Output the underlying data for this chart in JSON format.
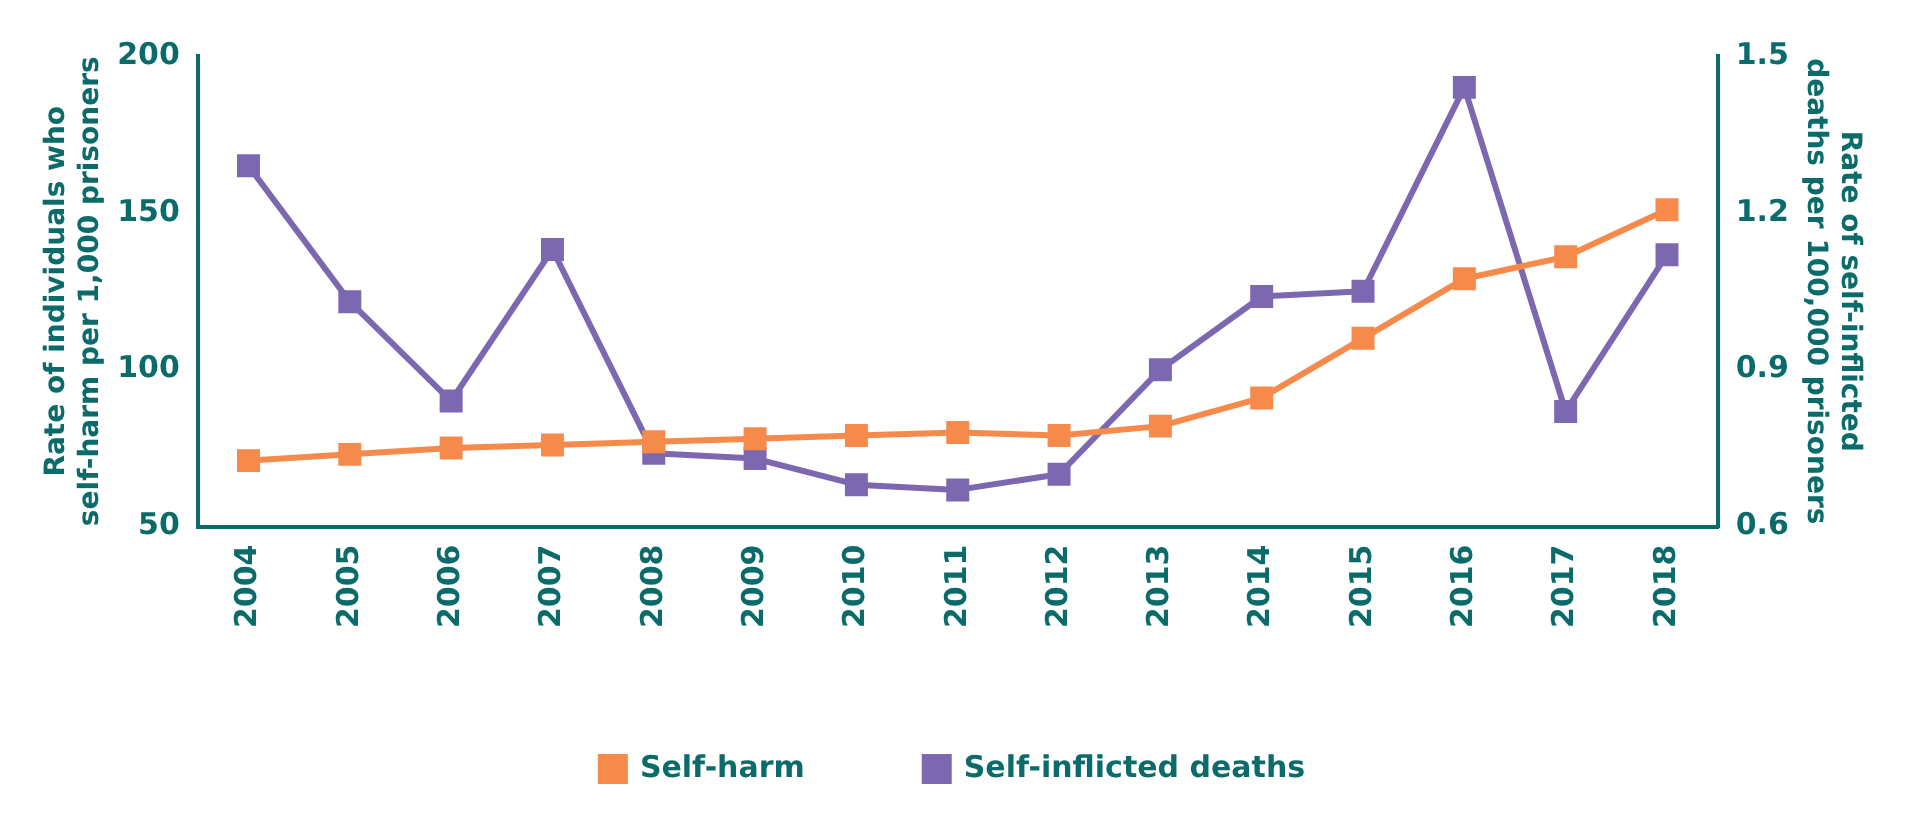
{
  "chart_data": {
    "type": "line",
    "categories": [
      "2004",
      "2005",
      "2006",
      "2007",
      "2008",
      "2009",
      "2010",
      "2011",
      "2012",
      "2013",
      "2014",
      "2015",
      "2016",
      "2017",
      "2018"
    ],
    "ylabel": "Rate of individuals who self-harm per 1,000 prisoners",
    "y2label": "Rate of self-inflicted deaths per 100,000 prisoners",
    "ylim": [
      50,
      200
    ],
    "yticks": [
      50,
      100,
      150,
      200
    ],
    "y2lim": [
      0.6,
      1.5
    ],
    "y2ticks": [
      {
        "value": 0.6,
        "label": "0.6"
      },
      {
        "value": 0.9,
        "label": "0.9"
      },
      {
        "value": 1.2,
        "label": "1.2"
      },
      {
        "value": 1.5,
        "label": "1.5"
      }
    ],
    "series": [
      {
        "name": "Self-harm",
        "color": "#f58a4b",
        "values": [
          71,
          73,
          75,
          76,
          77,
          78,
          79,
          80,
          79,
          82,
          91,
          110,
          129,
          136,
          151
        ]
      },
      {
        "name": "Self-inflicted deaths",
        "color": "#7b68b0",
        "axis": "y2",
        "values": [
          1.29,
          1.03,
          0.84,
          1.13,
          0.74,
          0.73,
          0.68,
          0.67,
          0.7,
          0.9,
          1.04,
          1.05,
          1.44,
          0.82,
          1.12
        ]
      }
    ],
    "marker": "square",
    "line_style": "solid",
    "grid": false,
    "legend": "bottom"
  }
}
